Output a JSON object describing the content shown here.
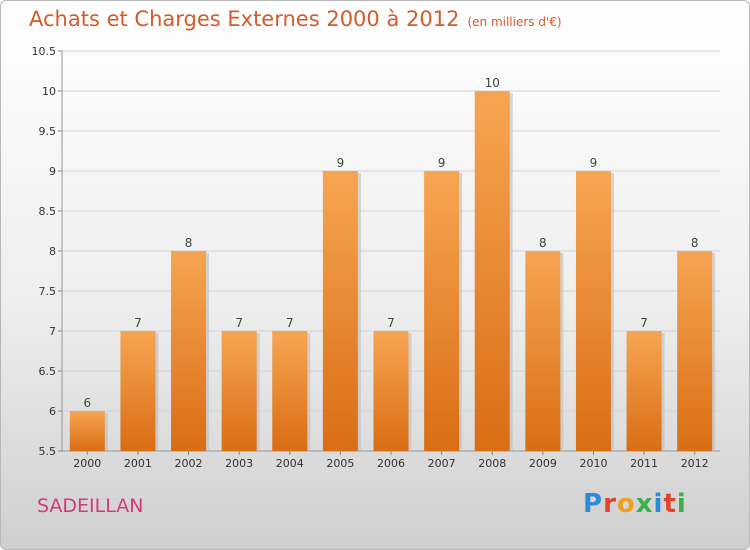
{
  "chart_data": {
    "type": "bar",
    "title": "Achats et Charges Externes 2000 à 2012",
    "subtitle": "(en milliers d'€)",
    "categories": [
      "2000",
      "2001",
      "2002",
      "2003",
      "2004",
      "2005",
      "2006",
      "2007",
      "2008",
      "2009",
      "2010",
      "2011",
      "2012"
    ],
    "values": [
      6,
      7,
      8,
      7,
      7,
      9,
      7,
      9,
      10,
      8,
      9,
      7,
      8
    ],
    "ylim": [
      5.5,
      10.5
    ],
    "yticks": [
      "5.5",
      "6",
      "6.5",
      "7",
      "7.5",
      "8",
      "8.5",
      "9",
      "9.5",
      "10",
      "10.5"
    ],
    "grid": true,
    "bar_color": "#f0892f",
    "xlabel": "",
    "ylabel": ""
  },
  "footer": {
    "commune": "SADEILLAN",
    "logo": "Proxiti"
  },
  "colors": {
    "title": "#d65a2a",
    "commune": "#d23a7a"
  }
}
